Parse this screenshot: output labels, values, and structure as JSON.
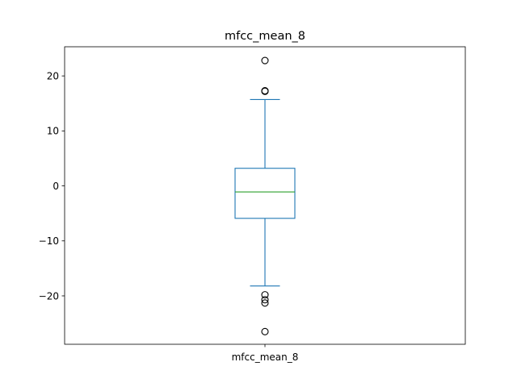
{
  "chart_data": {
    "type": "box",
    "title": "mfcc_mean_8",
    "categories": [
      "mfcc_mean_8"
    ],
    "boxes": [
      {
        "name": "mfcc_mean_8",
        "whisker_low": -18.2,
        "q1": -5.9,
        "median": -1.1,
        "q3": 3.2,
        "whisker_high": 15.7,
        "outliers": [
          22.8,
          17.3,
          17.2,
          -19.8,
          -20.7,
          -21.3,
          -26.5
        ]
      }
    ],
    "ylim": [
      -28.8,
      25.3
    ],
    "yticks": [
      20,
      10,
      0,
      -10,
      -20
    ],
    "ytick_labels": [
      "20",
      "10",
      "0",
      "−10",
      "−20"
    ],
    "grid": false,
    "colors": {
      "box": "#1f77b4",
      "median": "#2ca02c",
      "outlier": "#000000",
      "axes": "#000000"
    }
  }
}
